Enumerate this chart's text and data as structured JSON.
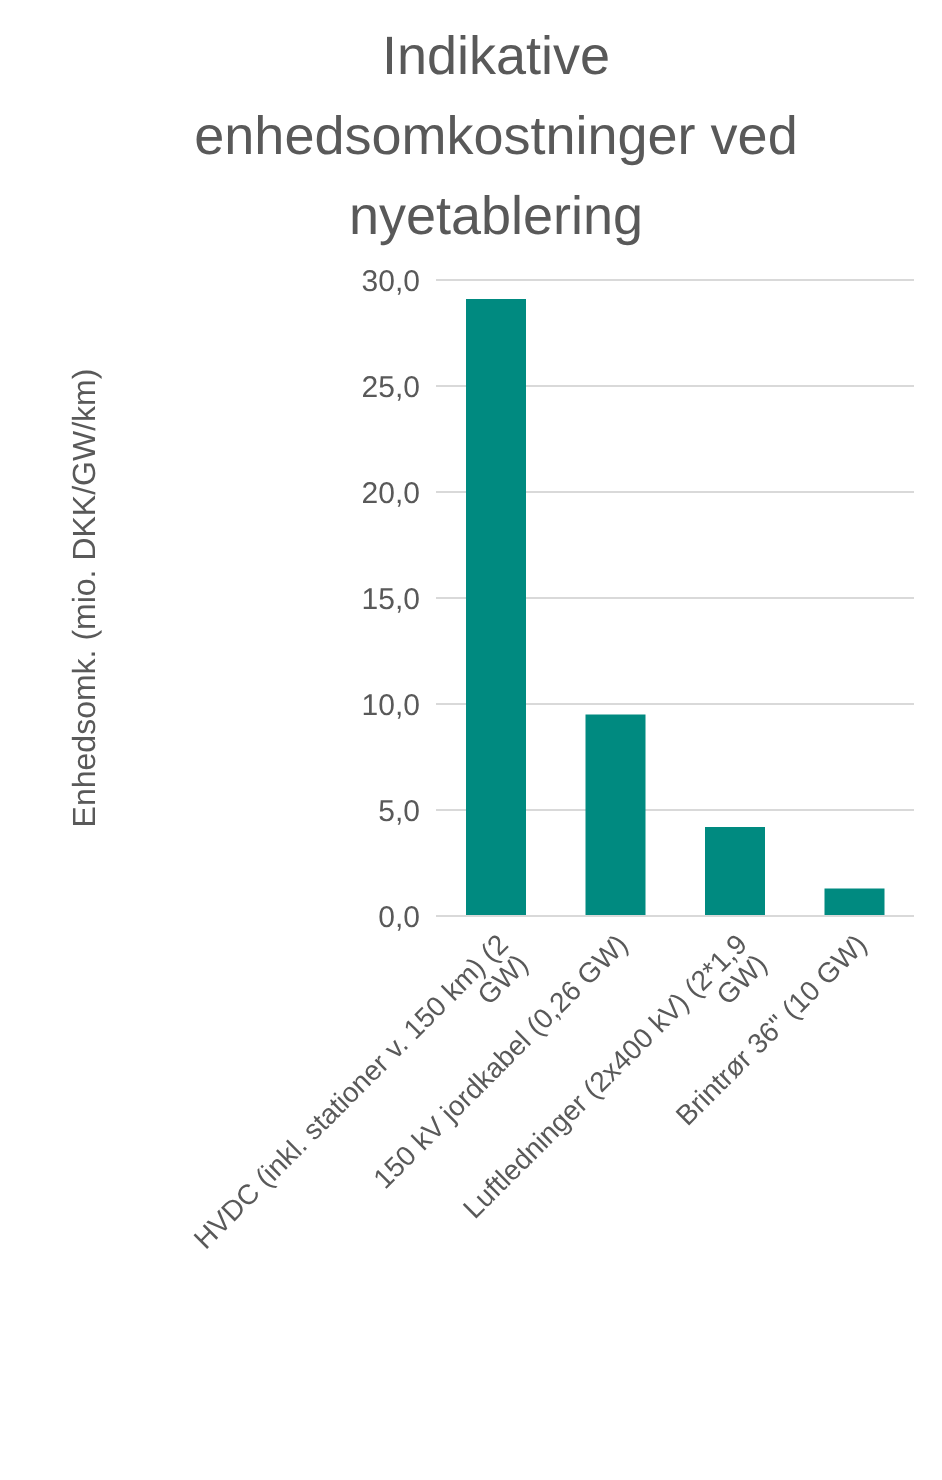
{
  "chart_data": {
    "type": "bar",
    "title": "Indikative enhedsomkostninger ved nyetablering",
    "ylabel": "Enhedsomk. (mio. DKK/GW/km)",
    "categories": [
      "HVDC (inkl. stationer v. 150 km) (2 GW)",
      "150 kV jordkabel (0,26 GW)",
      "Luftledninger (2x400 kV) (2*1,9 GW)",
      "Brintrør 36\" (10 GW)"
    ],
    "values": [
      29.1,
      9.5,
      4.2,
      1.3
    ],
    "color": "#008a80",
    "ylim": [
      0,
      30
    ],
    "yticks": [
      {
        "value": 0,
        "label": "0,0"
      },
      {
        "value": 5,
        "label": "5,0"
      },
      {
        "value": 10,
        "label": "10,0"
      },
      {
        "value": 15,
        "label": "15,0"
      },
      {
        "value": 20,
        "label": "20,0"
      },
      {
        "value": 25,
        "label": "25,0"
      },
      {
        "value": 30,
        "label": "30,0"
      }
    ],
    "grid": "y",
    "legend": false
  }
}
